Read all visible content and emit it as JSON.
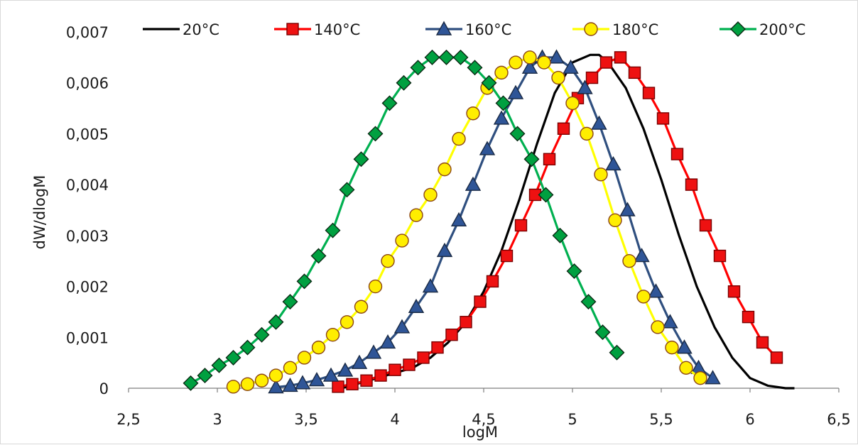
{
  "chart_data": {
    "type": "scatter",
    "xlabel": "logM",
    "ylabel": "dW/dlogM",
    "xlim": [
      2.5,
      6.5
    ],
    "ylim": [
      0,
      0.007
    ],
    "x_ticks": [
      "2,5",
      "3",
      "3,5",
      "4",
      "4,5",
      "5",
      "5,5",
      "6",
      "6,5"
    ],
    "y_ticks": [
      "0",
      "0,001",
      "0,002",
      "0,003",
      "0,004",
      "0,005",
      "0,006",
      "0,007"
    ],
    "grid": false,
    "legend_position": "top",
    "series": [
      {
        "name": "20°C",
        "line_color": "#000000",
        "marker": "none",
        "x": [
          3.7,
          3.8,
          3.9,
          4.0,
          4.1,
          4.2,
          4.3,
          4.4,
          4.5,
          4.6,
          4.7,
          4.8,
          4.9,
          5.0,
          5.1,
          5.15,
          5.2,
          5.3,
          5.4,
          5.5,
          5.6,
          5.7,
          5.8,
          5.9,
          6.0,
          6.1,
          6.2,
          6.25
        ],
        "y": [
          0.0,
          0.0001,
          0.0002,
          0.0003,
          0.0004,
          0.0006,
          0.0009,
          0.0013,
          0.0019,
          0.0027,
          0.0037,
          0.0048,
          0.0058,
          0.0064,
          0.00655,
          0.00655,
          0.0064,
          0.0059,
          0.0051,
          0.0041,
          0.003,
          0.002,
          0.0012,
          0.0006,
          0.0002,
          5e-05,
          0.0,
          0.0
        ]
      },
      {
        "name": "140°C",
        "line_color": "#ff0000",
        "marker": "square",
        "marker_fill": "#ee1111",
        "marker_edge": "#7a0000",
        "x": [
          3.68,
          3.76,
          3.84,
          3.92,
          4.0,
          4.08,
          4.16,
          4.24,
          4.32,
          4.4,
          4.48,
          4.55,
          4.63,
          4.71,
          4.79,
          4.87,
          4.95,
          5.03,
          5.11,
          5.19,
          5.27,
          5.35,
          5.43,
          5.51,
          5.59,
          5.67,
          5.75,
          5.83,
          5.91,
          5.99,
          6.07,
          6.15
        ],
        "y": [
          3e-05,
          8e-05,
          0.00015,
          0.00025,
          0.00036,
          0.00046,
          0.0006,
          0.0008,
          0.00105,
          0.0013,
          0.0017,
          0.0021,
          0.0026,
          0.0032,
          0.0038,
          0.0045,
          0.0051,
          0.0057,
          0.0061,
          0.0064,
          0.0065,
          0.0062,
          0.0058,
          0.0053,
          0.0046,
          0.004,
          0.0032,
          0.0026,
          0.0019,
          0.0014,
          0.0009,
          0.0006
        ]
      },
      {
        "name": "160°C",
        "line_color": "#2f4f7f",
        "marker": "triangle",
        "marker_fill": "#2f5597",
        "marker_edge": "#1a2a44",
        "x": [
          3.33,
          3.41,
          3.48,
          3.56,
          3.64,
          3.72,
          3.8,
          3.88,
          3.96,
          4.04,
          4.12,
          4.2,
          4.28,
          4.36,
          4.44,
          4.52,
          4.6,
          4.68,
          4.76,
          4.83,
          4.91,
          4.99,
          5.07,
          5.15,
          5.23,
          5.31,
          5.39,
          5.47,
          5.55,
          5.63,
          5.71,
          5.79
        ],
        "y": [
          2e-05,
          5e-05,
          0.0001,
          0.00016,
          0.00025,
          0.00035,
          0.0005,
          0.0007,
          0.0009,
          0.0012,
          0.0016,
          0.002,
          0.0027,
          0.0033,
          0.004,
          0.0047,
          0.0053,
          0.0058,
          0.0063,
          0.0065,
          0.0065,
          0.0063,
          0.0059,
          0.0052,
          0.0044,
          0.0035,
          0.0026,
          0.0019,
          0.0013,
          0.0008,
          0.0004,
          0.0002
        ]
      },
      {
        "name": "180°C",
        "line_color": "#ffff00",
        "marker": "circle",
        "marker_fill": "#ffee00",
        "marker_edge": "#8b4513",
        "x": [
          3.09,
          3.17,
          3.25,
          3.33,
          3.41,
          3.49,
          3.57,
          3.65,
          3.73,
          3.81,
          3.89,
          3.96,
          4.04,
          4.12,
          4.2,
          4.28,
          4.36,
          4.44,
          4.52,
          4.6,
          4.68,
          4.76,
          4.84,
          4.92,
          5.0,
          5.08,
          5.16,
          5.24,
          5.32,
          5.4,
          5.48,
          5.56,
          5.64,
          5.72
        ],
        "y": [
          3e-05,
          8e-05,
          0.00015,
          0.00025,
          0.0004,
          0.0006,
          0.0008,
          0.00105,
          0.0013,
          0.0016,
          0.002,
          0.0025,
          0.0029,
          0.0034,
          0.0038,
          0.0043,
          0.0049,
          0.0054,
          0.0059,
          0.0062,
          0.0064,
          0.0065,
          0.0064,
          0.0061,
          0.0056,
          0.005,
          0.0042,
          0.0033,
          0.0025,
          0.0018,
          0.0012,
          0.0008,
          0.0004,
          0.0002
        ]
      },
      {
        "name": "200°C",
        "line_color": "#00b050",
        "marker": "diamond",
        "marker_fill": "#00a040",
        "marker_edge": "#0a2a14",
        "x": [
          2.85,
          2.93,
          3.01,
          3.09,
          3.17,
          3.25,
          3.33,
          3.41,
          3.49,
          3.57,
          3.65,
          3.73,
          3.81,
          3.89,
          3.97,
          4.05,
          4.13,
          4.21,
          4.29,
          4.37,
          4.45,
          4.53,
          4.61,
          4.69,
          4.77,
          4.85,
          4.93,
          5.01,
          5.09,
          5.17,
          5.25
        ],
        "y": [
          0.0001,
          0.00025,
          0.00045,
          0.0006,
          0.0008,
          0.00105,
          0.0013,
          0.0017,
          0.0021,
          0.0026,
          0.0031,
          0.0039,
          0.0045,
          0.005,
          0.0056,
          0.006,
          0.0063,
          0.0065,
          0.0065,
          0.0065,
          0.0063,
          0.006,
          0.0056,
          0.005,
          0.0045,
          0.0038,
          0.003,
          0.0023,
          0.0017,
          0.0011,
          0.0007
        ]
      }
    ]
  }
}
